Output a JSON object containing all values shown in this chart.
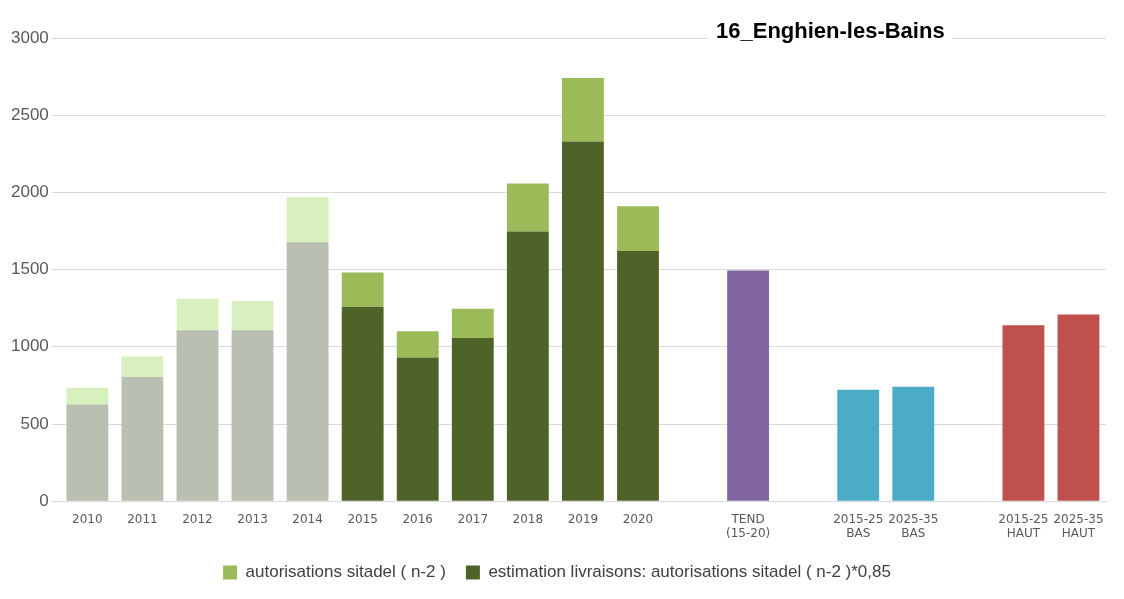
{
  "chart_data": {
    "type": "bar",
    "title": "16_Enghien-les-Bains",
    "stacked": true,
    "categories": [
      "2010",
      "2011",
      "2012",
      "2013",
      "2014",
      "2015",
      "2016",
      "2017",
      "2018",
      "2019",
      "2020",
      null,
      "TEND (15-20)",
      null,
      "2015-25 BAS",
      "2025-35 BAS",
      null,
      "2015-25 HAUT",
      "2025-35 HAUT"
    ],
    "series": [
      {
        "name": "estimation livraisons: autorisations sitadel ( n-2 )*0,85",
        "color": "#4f6228",
        "colors": [
          "#b9c0b1",
          "#b9c0b1",
          "#b9c0b1",
          "#b9c0b1",
          "#b9c0b1",
          "#4f6228",
          "#4f6228",
          "#4f6228",
          "#4f6228",
          "#4f6228",
          "#4f6228",
          "#4f6228",
          "#4f6228",
          "#4f6228",
          "#4f6228",
          "#4f6228",
          "#4f6228",
          "#4f6228",
          "#4f6228"
        ],
        "values": [
          627,
          804,
          1108,
          1108,
          1677,
          1259,
          930,
          1057,
          1747,
          2329,
          1620,
          null,
          null,
          null,
          null,
          null,
          null,
          null,
          null
        ]
      },
      {
        "name": "autorisations sitadel ( n-2 )",
        "color": "#9bbb59",
        "colors": [
          "#d8efbe",
          "#d8efbe",
          "#d8efbe",
          "#d8efbe",
          "#d8efbe",
          "#9bbb59",
          "#9bbb59",
          "#9bbb59",
          "#9bbb59",
          "#9bbb59",
          "#9bbb59",
          "#9bbb59",
          "#9bbb59",
          "#9bbb59",
          "#9bbb59",
          "#9bbb59",
          "#9bbb59",
          "#9bbb59",
          "#9bbb59"
        ],
        "values": [
          107,
          133,
          202,
          189,
          291,
          222,
          171,
          190,
          310,
          412,
          291,
          null,
          null,
          null,
          null,
          null,
          null,
          null,
          null
        ]
      },
      {
        "colors": [
          "#8064a2",
          "#8064a2",
          "#8064a2",
          "#8064a2",
          "#8064a2",
          "#8064a2",
          "#8064a2",
          "#8064a2",
          "#8064a2",
          "#8064a2",
          "#8064a2",
          "#8064a2",
          "#8064a2",
          "#8064a2",
          "#4bacc6",
          "#4bacc6",
          "#4bacc6",
          "#c0504d",
          "#c0504d"
        ],
        "values": [
          null,
          null,
          null,
          null,
          null,
          null,
          null,
          null,
          null,
          null,
          null,
          null,
          1494,
          null,
          722,
          741,
          null,
          1139,
          1209
        ]
      }
    ],
    "ylim": [
      0,
      3000
    ],
    "yticks": [
      0,
      500,
      1000,
      1500,
      2000,
      2500,
      3000
    ],
    "grid": "y",
    "legend": "bottom"
  }
}
